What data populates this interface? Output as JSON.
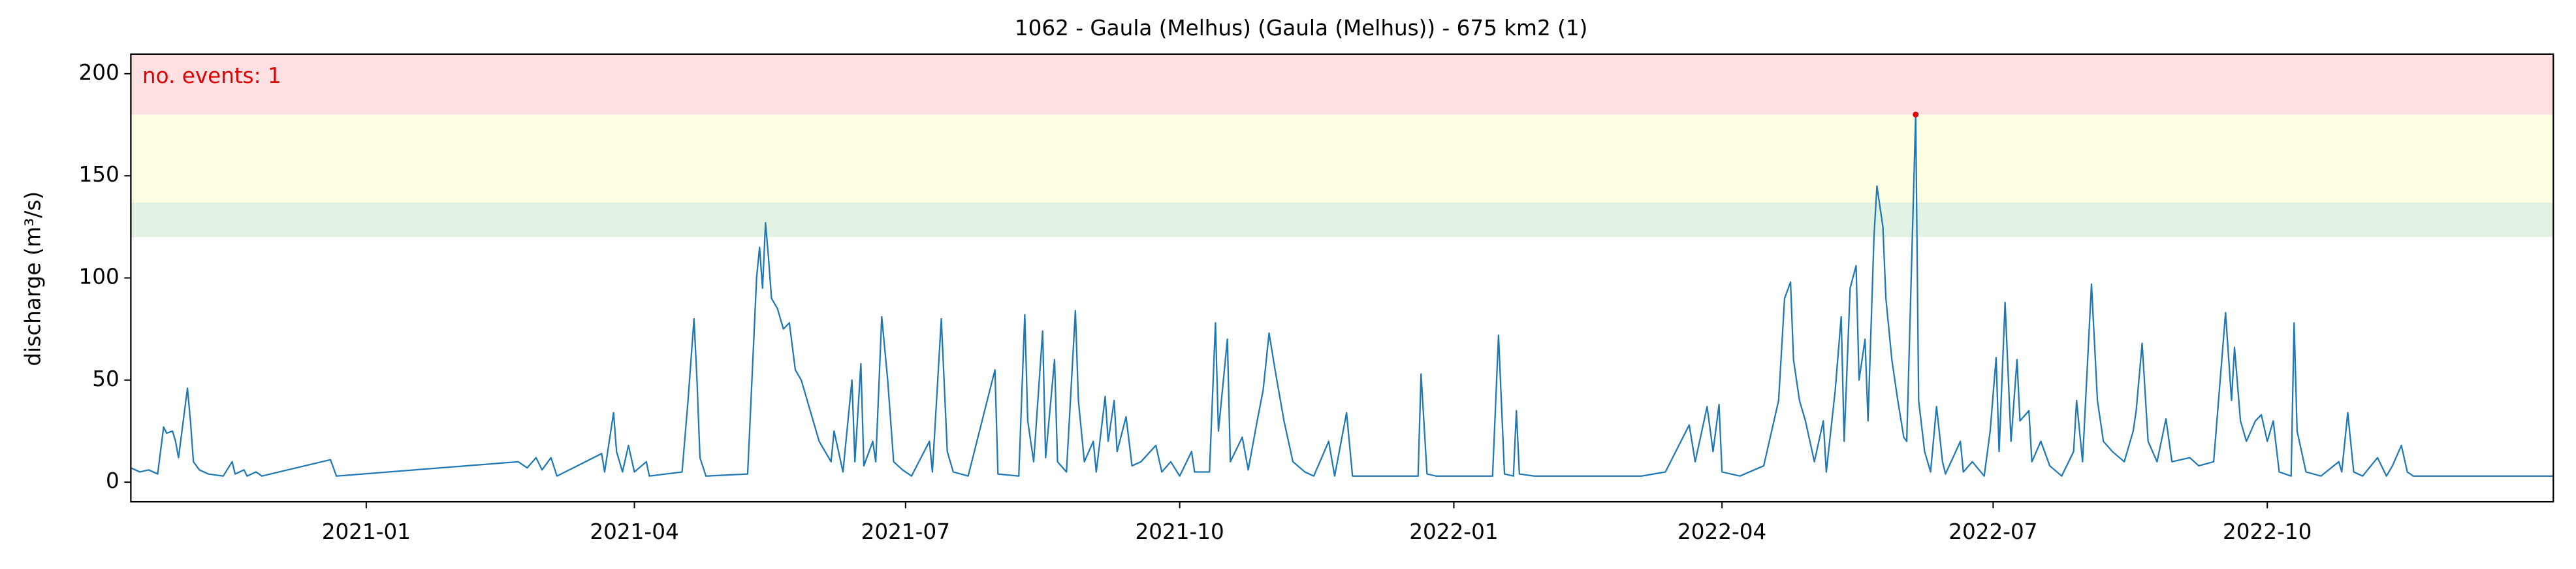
{
  "chart_data": {
    "type": "line",
    "title": "1062 - Gaula (Melhus) (Gaula (Melhus)) - 675 km2 (1)",
    "ylabel": "discharge (m³/s)",
    "annotation": "no. events: 1",
    "annotation_color": "#dd0000",
    "color": "#1f77b4",
    "x": [
      -79,
      -76,
      -73,
      -70,
      -68,
      -67,
      -65,
      -64,
      -63,
      -60,
      -59,
      -58,
      -56,
      -53,
      -48,
      -45,
      -44,
      -41,
      -40,
      -37,
      -35,
      -12,
      -10,
      51,
      54,
      57,
      59,
      62,
      64,
      79,
      80,
      83,
      84,
      86,
      88,
      90,
      94,
      95,
      106,
      108,
      110,
      111,
      112,
      114,
      128,
      131,
      132,
      133,
      134,
      135,
      136,
      138,
      140,
      142,
      144,
      146,
      149,
      152,
      156,
      157,
      160,
      163,
      164,
      166,
      167,
      170,
      171,
      173,
      175,
      177,
      180,
      183,
      189,
      190,
      193,
      195,
      197,
      202,
      211,
      212,
      219,
      221,
      222,
      224,
      227,
      228,
      231,
      232,
      235,
      238,
      239,
      241,
      244,
      245,
      248,
      249,
      251,
      252,
      255,
      257,
      260,
      265,
      267,
      270,
      273,
      277,
      278,
      283,
      285,
      286,
      289,
      290,
      294,
      296,
      299,
      301,
      303,
      305,
      308,
      311,
      315,
      318,
      323,
      325,
      329,
      331,
      334,
      353,
      354,
      356,
      359,
      378,
      380,
      382,
      385,
      386,
      387,
      392,
      428,
      436,
      444,
      446,
      450,
      452,
      454,
      455,
      461,
      469,
      474,
      476,
      478,
      479,
      481,
      483,
      486,
      489,
      490,
      493,
      495,
      496,
      498,
      500,
      501,
      503,
      504,
      506,
      507,
      509,
      510,
      512,
      514,
      516,
      517,
      520,
      521,
      523,
      525,
      527,
      529,
      530,
      535,
      536,
      539,
      543,
      545,
      547,
      548,
      550,
      552,
      554,
      555,
      558,
      559,
      562,
      565,
      569,
      573,
      574,
      576,
      579,
      581,
      583,
      586,
      590,
      593,
      594,
      596,
      598,
      601,
      604,
      606,
      612,
      615,
      620,
      624,
      626,
      627,
      629,
      631,
      634,
      636,
      638,
      640,
      642,
      646,
      647,
      648,
      651,
      656,
      662,
      663,
      665,
      667,
      670,
      675,
      678,
      680,
      683,
      685,
      687,
      734
    ],
    "values": [
      7,
      5,
      6,
      4,
      27,
      24,
      25,
      20,
      12,
      46,
      30,
      10,
      6,
      4,
      3,
      10,
      4,
      6,
      3,
      5,
      3,
      11,
      3,
      10,
      7,
      12,
      6,
      12,
      3,
      14,
      5,
      34,
      15,
      5,
      18,
      5,
      10,
      3,
      5,
      40,
      80,
      50,
      12,
      3,
      4,
      100,
      115,
      95,
      127,
      110,
      90,
      85,
      75,
      78,
      55,
      50,
      35,
      20,
      10,
      25,
      5,
      50,
      10,
      58,
      8,
      20,
      10,
      81,
      50,
      10,
      6,
      3,
      20,
      5,
      80,
      15,
      5,
      3,
      55,
      4,
      3,
      82,
      30,
      10,
      74,
      12,
      60,
      10,
      5,
      84,
      40,
      10,
      20,
      5,
      42,
      20,
      40,
      15,
      32,
      8,
      10,
      18,
      5,
      10,
      3,
      15,
      5,
      5,
      78,
      25,
      70,
      10,
      22,
      6,
      30,
      45,
      73,
      55,
      30,
      10,
      5,
      3,
      20,
      3,
      34,
      3,
      3,
      3,
      53,
      4,
      3,
      3,
      72,
      4,
      3,
      35,
      4,
      3,
      3,
      5,
      28,
      10,
      37,
      15,
      38,
      5,
      3,
      8,
      40,
      90,
      98,
      60,
      40,
      30,
      10,
      30,
      5,
      45,
      81,
      20,
      95,
      106,
      50,
      70,
      30,
      120,
      145,
      125,
      90,
      60,
      40,
      22,
      20,
      180,
      40,
      15,
      5,
      37,
      10,
      4,
      20,
      5,
      10,
      3,
      25,
      61,
      15,
      88,
      20,
      60,
      30,
      35,
      10,
      20,
      8,
      3,
      15,
      40,
      10,
      97,
      40,
      20,
      15,
      10,
      25,
      35,
      68,
      20,
      10,
      31,
      10,
      12,
      8,
      10,
      83,
      40,
      66,
      30,
      20,
      30,
      33,
      20,
      30,
      5,
      3,
      78,
      25,
      5,
      3,
      10,
      5,
      34,
      5,
      3,
      12,
      3,
      8,
      18,
      5,
      3,
      3
    ],
    "xlim": [
      -79,
      734
    ],
    "xticks": [
      {
        "value": 0,
        "label": "2021-01"
      },
      {
        "value": 90,
        "label": "2021-04"
      },
      {
        "value": 181,
        "label": "2021-07"
      },
      {
        "value": 273,
        "label": "2021-10"
      },
      {
        "value": 365,
        "label": "2022-01"
      },
      {
        "value": 455,
        "label": "2022-04"
      },
      {
        "value": 546,
        "label": "2022-07"
      },
      {
        "value": 638,
        "label": "2022-10"
      }
    ],
    "ylim": [
      -9.6,
      209.6
    ],
    "yticks": [
      0,
      50,
      100,
      150,
      200
    ],
    "bands": [
      {
        "from": 120,
        "to": 137,
        "color": "#e3f2e3"
      },
      {
        "from": 137,
        "to": 180,
        "color": "#fefee2"
      },
      {
        "from": 180,
        "to": 209.6,
        "color": "#ffe1e4"
      }
    ],
    "events": {
      "x": [
        520
      ],
      "y": [
        180
      ],
      "color": "#dd0000"
    }
  }
}
